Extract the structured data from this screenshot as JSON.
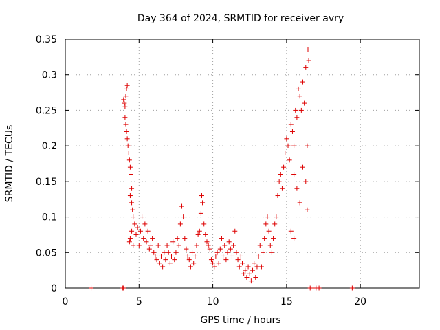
{
  "chart_data": {
    "type": "scatter",
    "title": "Day 364 of 2024, SRMTID for receiver avry",
    "xlabel": "GPS time / hours",
    "ylabel": "SRMTID / TECUs",
    "xlim": [
      0,
      24
    ],
    "ylim": [
      0,
      0.35
    ],
    "grid": true,
    "marker": "+",
    "color": "#dd0000",
    "x_ticks": [
      0,
      5,
      10,
      15,
      20
    ],
    "x_tick_labels": [
      "0",
      "5",
      "10",
      "15",
      "20"
    ],
    "y_ticks": [
      0,
      0.05,
      0.1,
      0.15,
      0.2,
      0.25,
      0.3,
      0.35
    ],
    "y_tick_labels": [
      "0",
      "0.05",
      "0.1",
      "0.15",
      "0.2",
      "0.25",
      "0.3",
      "0.35"
    ],
    "series": [
      {
        "values": [
          [
            1.75,
            0.0
          ],
          [
            3.9,
            0.0
          ],
          [
            3.95,
            0.0
          ],
          [
            3.95,
            0.265
          ],
          [
            4.0,
            0.26
          ],
          [
            4.05,
            0.255
          ],
          [
            4.1,
            0.27
          ],
          [
            4.15,
            0.28
          ],
          [
            4.2,
            0.285
          ],
          [
            4.05,
            0.24
          ],
          [
            4.1,
            0.23
          ],
          [
            4.15,
            0.22
          ],
          [
            4.2,
            0.21
          ],
          [
            4.25,
            0.2
          ],
          [
            4.3,
            0.19
          ],
          [
            4.35,
            0.18
          ],
          [
            4.4,
            0.17
          ],
          [
            4.45,
            0.16
          ],
          [
            4.5,
            0.14
          ],
          [
            4.4,
            0.13
          ],
          [
            4.5,
            0.12
          ],
          [
            4.55,
            0.11
          ],
          [
            4.6,
            0.1
          ],
          [
            4.35,
            0.065
          ],
          [
            4.4,
            0.07
          ],
          [
            4.5,
            0.08
          ],
          [
            4.6,
            0.06
          ],
          [
            4.7,
            0.09
          ],
          [
            4.8,
            0.075
          ],
          [
            4.9,
            0.085
          ],
          [
            5.0,
            0.06
          ],
          [
            5.1,
            0.08
          ],
          [
            5.2,
            0.1
          ],
          [
            5.3,
            0.07
          ],
          [
            5.4,
            0.09
          ],
          [
            5.5,
            0.065
          ],
          [
            5.6,
            0.08
          ],
          [
            5.7,
            0.055
          ],
          [
            5.8,
            0.06
          ],
          [
            5.9,
            0.07
          ],
          [
            6.0,
            0.05
          ],
          [
            6.1,
            0.045
          ],
          [
            6.2,
            0.04
          ],
          [
            6.3,
            0.06
          ],
          [
            6.4,
            0.035
          ],
          [
            6.5,
            0.045
          ],
          [
            6.6,
            0.03
          ],
          [
            6.7,
            0.05
          ],
          [
            6.8,
            0.04
          ],
          [
            6.9,
            0.06
          ],
          [
            7.0,
            0.05
          ],
          [
            7.1,
            0.035
          ],
          [
            7.2,
            0.045
          ],
          [
            7.3,
            0.065
          ],
          [
            7.4,
            0.04
          ],
          [
            7.5,
            0.05
          ],
          [
            7.6,
            0.07
          ],
          [
            7.7,
            0.06
          ],
          [
            7.8,
            0.09
          ],
          [
            7.9,
            0.115
          ],
          [
            8.0,
            0.1
          ],
          [
            8.1,
            0.07
          ],
          [
            8.2,
            0.055
          ],
          [
            8.3,
            0.045
          ],
          [
            8.4,
            0.04
          ],
          [
            8.5,
            0.03
          ],
          [
            8.6,
            0.05
          ],
          [
            8.7,
            0.035
          ],
          [
            8.8,
            0.045
          ],
          [
            8.9,
            0.06
          ],
          [
            9.0,
            0.075
          ],
          [
            9.1,
            0.08
          ],
          [
            9.2,
            0.105
          ],
          [
            9.25,
            0.13
          ],
          [
            9.3,
            0.12
          ],
          [
            9.4,
            0.09
          ],
          [
            9.5,
            0.075
          ],
          [
            9.6,
            0.065
          ],
          [
            9.7,
            0.06
          ],
          [
            9.8,
            0.055
          ],
          [
            9.9,
            0.04
          ],
          [
            10.0,
            0.035
          ],
          [
            10.1,
            0.03
          ],
          [
            10.2,
            0.045
          ],
          [
            10.3,
            0.05
          ],
          [
            10.4,
            0.035
          ],
          [
            10.5,
            0.055
          ],
          [
            10.6,
            0.07
          ],
          [
            10.7,
            0.045
          ],
          [
            10.8,
            0.06
          ],
          [
            10.9,
            0.04
          ],
          [
            11.0,
            0.05
          ],
          [
            11.1,
            0.065
          ],
          [
            11.2,
            0.055
          ],
          [
            11.3,
            0.045
          ],
          [
            11.4,
            0.06
          ],
          [
            11.5,
            0.08
          ],
          [
            11.6,
            0.05
          ],
          [
            11.7,
            0.04
          ],
          [
            11.8,
            0.03
          ],
          [
            11.9,
            0.045
          ],
          [
            12.0,
            0.035
          ],
          [
            12.1,
            0.02
          ],
          [
            12.2,
            0.025
          ],
          [
            12.3,
            0.015
          ],
          [
            12.4,
            0.03
          ],
          [
            12.5,
            0.02
          ],
          [
            12.6,
            0.01
          ],
          [
            12.7,
            0.025
          ],
          [
            12.8,
            0.035
          ],
          [
            12.9,
            0.015
          ],
          [
            13.0,
            0.03
          ],
          [
            13.1,
            0.045
          ],
          [
            13.2,
            0.06
          ],
          [
            13.3,
            0.03
          ],
          [
            13.4,
            0.05
          ],
          [
            13.5,
            0.07
          ],
          [
            13.6,
            0.09
          ],
          [
            13.7,
            0.1
          ],
          [
            13.8,
            0.08
          ],
          [
            13.9,
            0.06
          ],
          [
            14.0,
            0.05
          ],
          [
            14.1,
            0.07
          ],
          [
            14.2,
            0.09
          ],
          [
            14.3,
            0.1
          ],
          [
            14.4,
            0.13
          ],
          [
            14.5,
            0.15
          ],
          [
            14.6,
            0.16
          ],
          [
            14.7,
            0.14
          ],
          [
            14.8,
            0.17
          ],
          [
            14.9,
            0.19
          ],
          [
            15.0,
            0.21
          ],
          [
            15.1,
            0.2
          ],
          [
            15.2,
            0.18
          ],
          [
            15.3,
            0.23
          ],
          [
            15.4,
            0.22
          ],
          [
            15.5,
            0.2
          ],
          [
            15.6,
            0.25
          ],
          [
            15.7,
            0.24
          ],
          [
            15.8,
            0.28
          ],
          [
            15.9,
            0.27
          ],
          [
            16.0,
            0.25
          ],
          [
            16.1,
            0.29
          ],
          [
            16.2,
            0.26
          ],
          [
            16.3,
            0.31
          ],
          [
            16.4,
            0.2
          ],
          [
            16.45,
            0.335
          ],
          [
            16.5,
            0.32
          ],
          [
            15.5,
            0.16
          ],
          [
            15.7,
            0.14
          ],
          [
            15.9,
            0.12
          ],
          [
            16.1,
            0.17
          ],
          [
            16.3,
            0.15
          ],
          [
            16.4,
            0.11
          ],
          [
            15.3,
            0.08
          ],
          [
            15.5,
            0.07
          ],
          [
            16.6,
            0.0
          ],
          [
            16.8,
            0.0
          ],
          [
            17.0,
            0.0
          ],
          [
            17.2,
            0.0
          ],
          [
            19.45,
            0.0
          ],
          [
            19.5,
            0.0
          ]
        ]
      }
    ]
  }
}
